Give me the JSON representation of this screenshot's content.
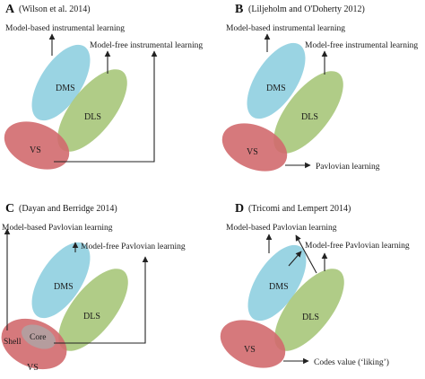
{
  "colors": {
    "dms": "#8fcfe0",
    "dls": "#a7c77a",
    "vs": "#d26a6e",
    "core": "#a9a9a9",
    "line": "#222222"
  },
  "panels": [
    {
      "letter": "A",
      "citation": "(Wilson et al. 2014)",
      "regions": {
        "dms": "DMS",
        "dls": "DLS",
        "vs": "VS"
      },
      "outputs": [
        "Model-based instrumental learning",
        "Model-free instrumental learning"
      ]
    },
    {
      "letter": "B",
      "citation": "(Liljeholm and O'Doherty 2012)",
      "regions": {
        "dms": "DMS",
        "dls": "DLS",
        "vs": "VS"
      },
      "outputs": [
        "Model-based instrumental learning",
        "Model-free instrumental learning",
        "Pavlovian learning"
      ]
    },
    {
      "letter": "C",
      "citation": "(Dayan and Berridge 2014)",
      "regions": {
        "dms": "DMS",
        "dls": "DLS",
        "vs": "VS",
        "shell": "Shell",
        "core": "Core"
      },
      "outputs": [
        "Model-based Pavlovian learning",
        "Model-free Pavlovian learning"
      ]
    },
    {
      "letter": "D",
      "citation": "(Tricomi and Lempert 2014)",
      "regions": {
        "dms": "DMS",
        "dls": "DLS",
        "vs": "VS"
      },
      "outputs": [
        "Model-based Pavlovian learning",
        "Model-free Pavlovian learning",
        "Codes value (‘liking’)"
      ]
    }
  ]
}
